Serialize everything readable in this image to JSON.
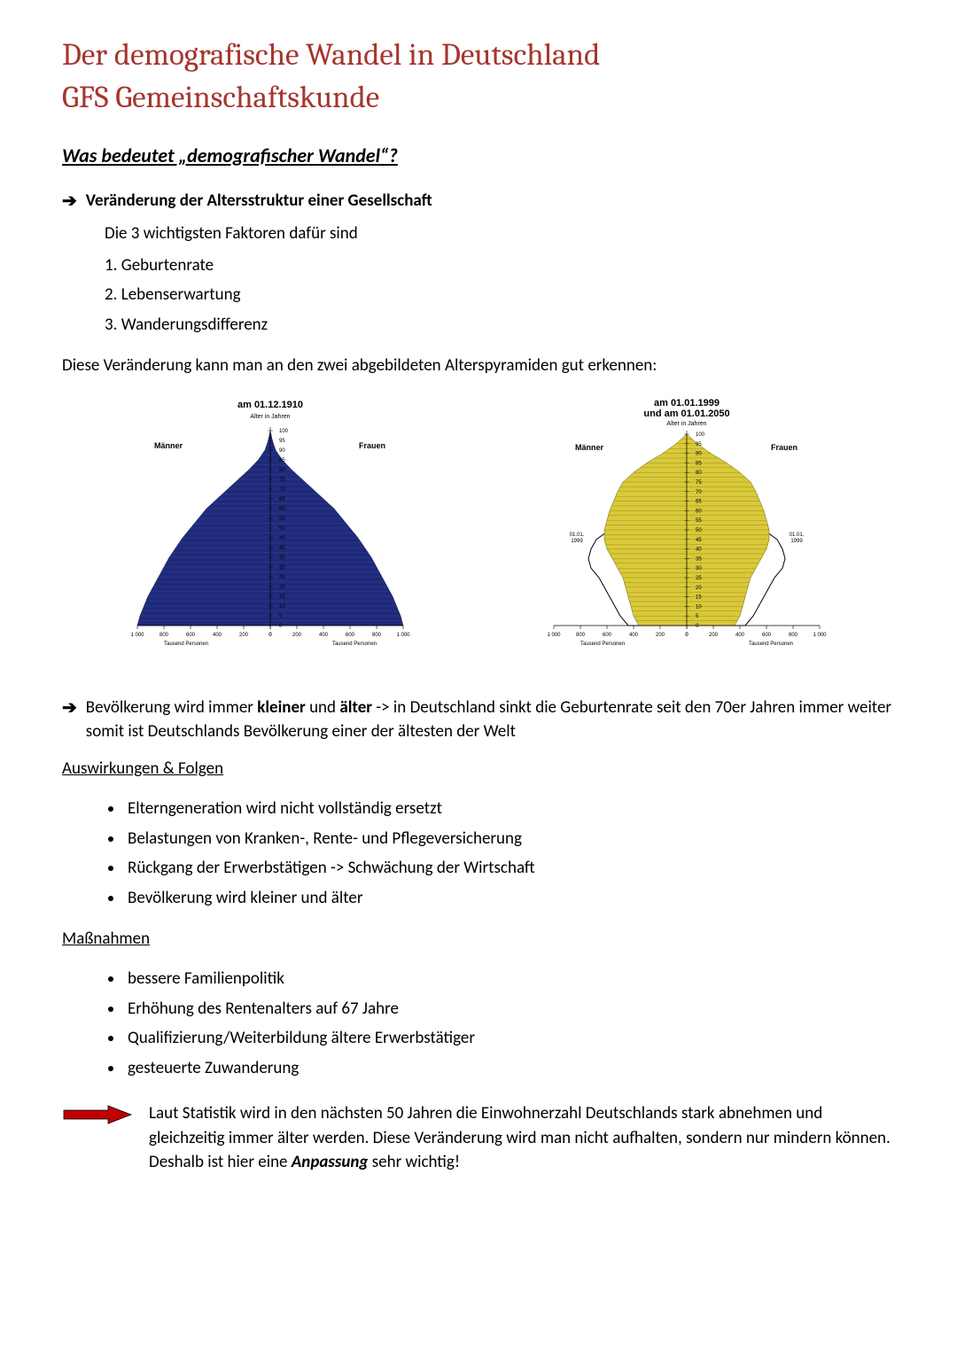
{
  "title_line1": "Der demografische Wandel in Deutschland",
  "title_line2": "GFS Gemeinschaftskunde",
  "section_heading": "Was bedeutet „demografischer Wandel“?",
  "arrow1_text": "Veränderung der Altersstruktur einer Gesellschaft",
  "factors_intro": "Die 3 wichtigsten Faktoren dafür sind",
  "factors": [
    "1. Geburtenrate",
    "2. Lebenserwartung",
    "3. Wanderungsdifferenz"
  ],
  "pyramids_intro": "Diese Veränderung kann man an den zwei abgebildeten Alterspyramiden gut erkennen:",
  "pyramid_left": {
    "title": "am 01.12.1910",
    "subtitle": "Alter in Jahren",
    "left_label": "Männer",
    "right_label": "Frauen",
    "axis_labels_left": [
      "1 000",
      "800",
      "600",
      "400",
      "200",
      "0"
    ],
    "axis_labels_right": [
      "0",
      "200",
      "400",
      "600",
      "800",
      "1 000"
    ],
    "axis_caption": "Tausend Personen",
    "y_ticks": [
      "0",
      "5",
      "10",
      "15",
      "20",
      "25",
      "30",
      "35",
      "40",
      "45",
      "50",
      "55",
      "60",
      "65",
      "70",
      "75",
      "80",
      "85",
      "90",
      "95",
      "100"
    ],
    "fill_color": "#1f2a78",
    "stroke_color": "#0d1340",
    "shape": "triangle",
    "widths": [
      1.0,
      0.98,
      0.95,
      0.92,
      0.88,
      0.84,
      0.8,
      0.76,
      0.71,
      0.66,
      0.6,
      0.54,
      0.48,
      0.4,
      0.32,
      0.24,
      0.16,
      0.09,
      0.04,
      0.015,
      0.0
    ],
    "bar_count": 40
  },
  "pyramid_right": {
    "title_line1": "am 01.01.1999",
    "title_line2": "und am 01.01.2050",
    "subtitle": "Alter in Jahren",
    "left_label": "Männer",
    "right_label": "Frauen",
    "axis_labels_left": [
      "1 000",
      "800",
      "600",
      "400",
      "200",
      "0"
    ],
    "axis_labels_right": [
      "0",
      "200",
      "400",
      "600",
      "800",
      "1 000"
    ],
    "axis_caption": "Tausend Personen",
    "y_ticks": [
      "0",
      "5",
      "10",
      "15",
      "20",
      "25",
      "30",
      "35",
      "40",
      "45",
      "50",
      "55",
      "60",
      "65",
      "70",
      "75",
      "80",
      "85",
      "90",
      "95",
      "100"
    ],
    "fill_color": "#d9c93a",
    "stroke_color": "#6b5f00",
    "outline_color": "#000000",
    "side_label_left": "01.01.\n1999",
    "side_label_right": "01.01.\n1999",
    "widths_inner": [
      0.36,
      0.4,
      0.42,
      0.44,
      0.46,
      0.48,
      0.52,
      0.56,
      0.6,
      0.62,
      0.62,
      0.6,
      0.58,
      0.55,
      0.52,
      0.48,
      0.4,
      0.3,
      0.18,
      0.08,
      0.0
    ],
    "widths_outer": [
      0.44,
      0.5,
      0.54,
      0.58,
      0.62,
      0.66,
      0.72,
      0.74,
      0.72,
      0.68,
      0.58,
      0.52,
      0.5,
      0.5,
      0.44,
      0.38,
      0.28,
      0.18,
      0.09,
      0.03,
      0.0
    ]
  },
  "arrow2_pre": "Bevölkerung wird immer ",
  "arrow2_b1": "kleiner",
  "arrow2_mid1": " und ",
  "arrow2_b2": "älter",
  "arrow2_post": " -> in Deutschland sinkt die Geburtenrate seit den 70er Jahren immer weiter somit ist Deutschlands Bevölkerung einer der ältesten der Welt",
  "sub1_heading": "Auswirkungen & Folgen",
  "sub1_items": [
    "Elterngeneration wird nicht vollständig ersetzt",
    "Belastungen von Kranken-, Rente- und Pflegeversicherung",
    "Rückgang der Erwerbstätigen -> Schwächung der Wirtschaft",
    "Bevölkerung wird kleiner und älter"
  ],
  "sub2_heading": "Maßnahmen",
  "sub2_items": [
    "bessere Familienpolitik",
    "Erhöhung des Rentenalters auf 67 Jahre",
    "Qualifizierung/Weiterbildung ältere Erwerbstätiger",
    "gesteuerte Zuwanderung"
  ],
  "conclusion_pre": "Laut Statistik wird in den nächsten 50 Jahren die Einwohnerzahl Deutschlands stark abnehmen und gleichzeitig immer älter werden. Diese Veränderung wird man nicht aufhalten, sondern nur mindern können. Deshalb ist hier eine ",
  "conclusion_b": "Anpassung",
  "conclusion_post": " sehr wichtig!",
  "colors": {
    "title": "#a6352e",
    "red_arrow_fill": "#c00000",
    "red_arrow_stroke": "#000000"
  }
}
